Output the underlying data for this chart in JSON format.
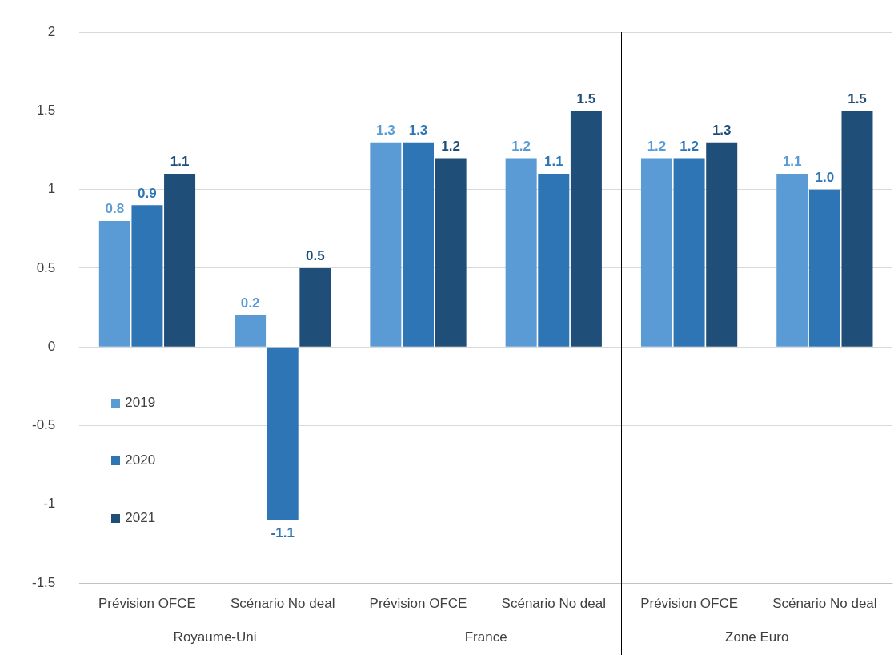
{
  "chart_data": {
    "type": "bar",
    "categories": [
      "Prévision OFCE",
      "Scénario No deal",
      "Prévision OFCE",
      "Scénario No deal",
      "Prévision OFCE",
      "Scénario No deal"
    ],
    "annotations": [
      "Royaume-Uni",
      "France",
      "Zone Euro"
    ],
    "series": [
      {
        "name": "2019",
        "color": "#5b9bd5",
        "values": [
          0.8,
          0.2,
          1.3,
          1.2,
          1.2,
          1.1
        ],
        "value_labels": [
          "0.8",
          "0.2",
          "1.3",
          "1.2",
          "1.2",
          "1.1"
        ]
      },
      {
        "name": "2020",
        "color": "#2e75b6",
        "values": [
          0.9,
          -1.1,
          1.3,
          1.1,
          1.2,
          1.0
        ],
        "value_labels": [
          "0.9",
          "-1.1",
          "1.3",
          "1.1",
          "1.2",
          "1.0"
        ]
      },
      {
        "name": "2021",
        "color": "#1f4e79",
        "values": [
          1.1,
          0.5,
          1.2,
          1.5,
          1.3,
          1.5
        ],
        "value_labels": [
          "1.1",
          "0.5",
          "1.2",
          "1.5",
          "1.3",
          "1.5"
        ]
      }
    ],
    "ylim": [
      -1.5,
      2
    ],
    "yticks": [
      -1.5,
      -1,
      -0.5,
      0,
      0.5,
      1,
      1.5,
      2
    ],
    "grid": "y",
    "legend": "bottom left"
  }
}
